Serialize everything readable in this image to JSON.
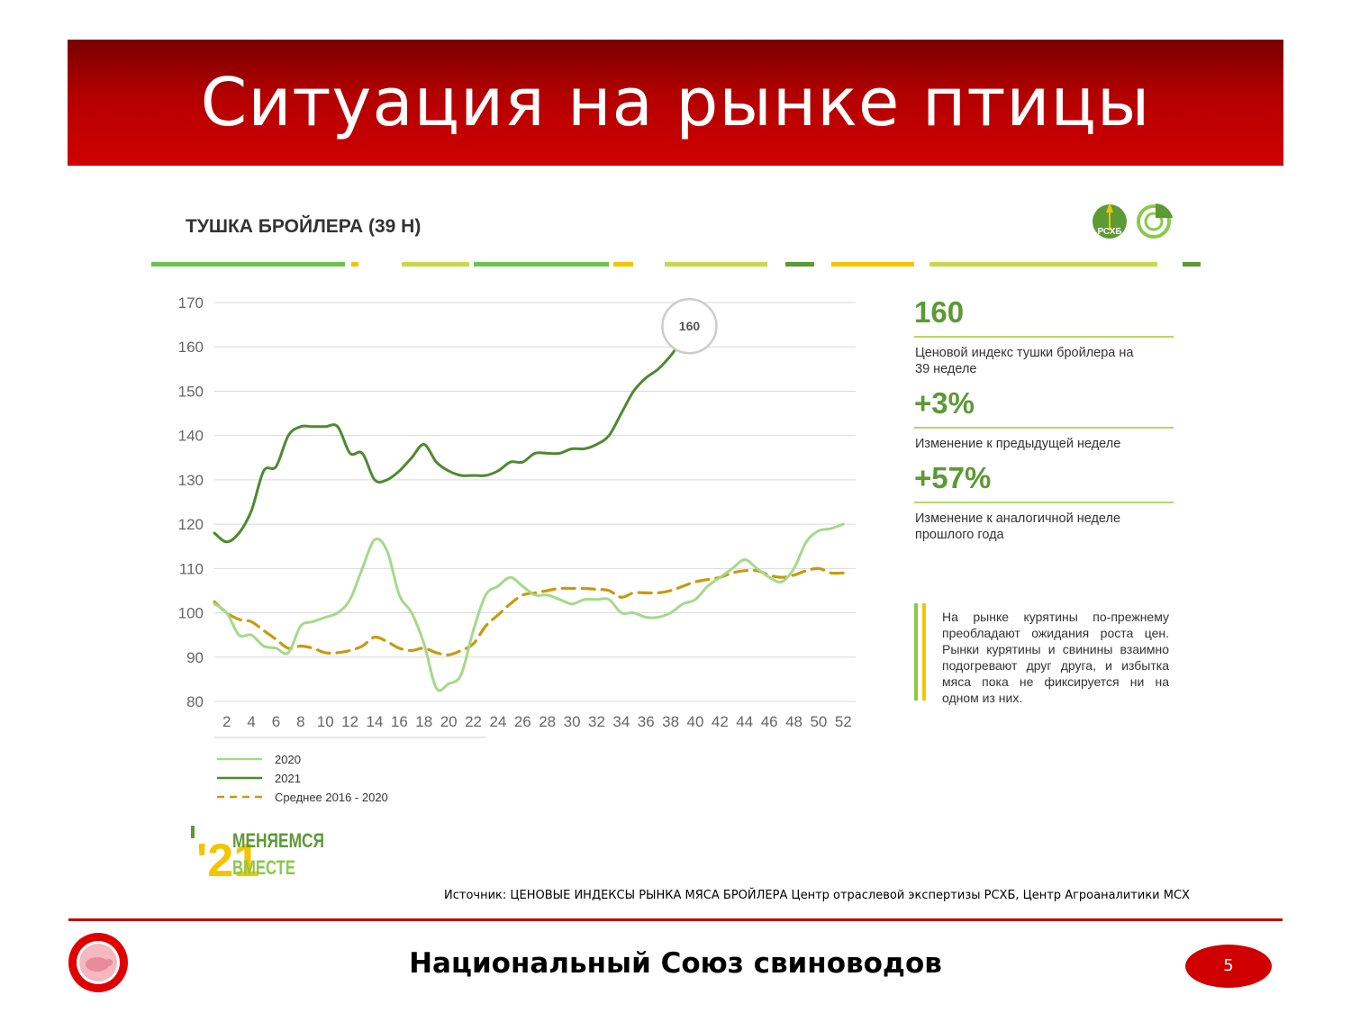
{
  "slide": {
    "title": "Ситуация на рынке птицы",
    "footer": "Национальный Союз свиноводов",
    "page_number": "5",
    "source": "Источник: ЦЕНОВЫЕ ИНДЕКСЫ РЫНКА МЯСА БРОЙЛЕРА  Центр отраслевой экспертизы РСХБ, Центр Агроаналитики МСХ"
  },
  "colors": {
    "banner": "#c00000",
    "accent_green": "#5b9a35",
    "light_green": "#a5d98a",
    "dark_green": "#4e8a2e",
    "mustard": "#c89a10",
    "yellow": "#f5c400"
  },
  "logos": {
    "rshb": "РСХБ",
    "promo_year": "'21",
    "promo_line1": "МЕНЯЕМСЯ",
    "promo_line2": "ВМЕСТЕ"
  },
  "kpis": [
    {
      "value": "160",
      "label": "Ценовой индекс тушки бройлера на 39 неделе"
    },
    {
      "value": "+3%",
      "label": "Изменение к предыдущей неделе"
    },
    {
      "value": "+57%",
      "label": "Изменение к аналогичной неделе прошлого года"
    }
  ],
  "note": "На рынке курятины по-прежнему преобладают ожидания роста цен. Рынки курятины и свинины взаимно подогревают друг друга, и избытка мяса пока не фиксируется ни на одном из них.",
  "chart_data": {
    "type": "line",
    "title": "ТУШКА БРОЙЛЕРА (39 Н)",
    "xlabel": "",
    "ylabel": "",
    "grid": true,
    "legend_position": "bottom-left",
    "xlim": [
      1,
      53
    ],
    "ylim": [
      80,
      170
    ],
    "x_ticks": [
      2,
      4,
      6,
      8,
      10,
      12,
      14,
      16,
      18,
      20,
      22,
      24,
      26,
      28,
      30,
      32,
      34,
      36,
      38,
      40,
      42,
      44,
      46,
      48,
      50,
      52
    ],
    "y_ticks": [
      80,
      90,
      100,
      110,
      120,
      130,
      140,
      150,
      160,
      170
    ],
    "annotation": {
      "x": 38.5,
      "y": 160,
      "text": "160"
    },
    "series": [
      {
        "name": "2020",
        "color": "#a5d98a",
        "dash": false,
        "x": [
          1,
          2,
          3,
          4,
          5,
          6,
          7,
          8,
          9,
          10,
          11,
          12,
          13,
          14,
          15,
          16,
          17,
          18,
          19,
          20,
          21,
          22,
          23,
          24,
          25,
          26,
          27,
          28,
          29,
          30,
          31,
          32,
          33,
          34,
          35,
          36,
          37,
          38,
          39,
          40,
          41,
          42,
          43,
          44,
          45,
          46,
          47,
          48,
          49,
          50,
          51,
          52
        ],
        "y": [
          102,
          100,
          95,
          95,
          92.5,
          92,
          91,
          97,
          98,
          99,
          100,
          103,
          110,
          116.5,
          114,
          104,
          100,
          93,
          83,
          84,
          86,
          96,
          104,
          106,
          108,
          106,
          104,
          104,
          103,
          102,
          103,
          103,
          103,
          100,
          100,
          99,
          99,
          100,
          102,
          103,
          106,
          108,
          110,
          112,
          110,
          108,
          107,
          110,
          116,
          118.5,
          119,
          120
        ]
      },
      {
        "name": "2021",
        "color": "#4e8a2e",
        "dash": false,
        "x": [
          1,
          2,
          3,
          4,
          5,
          6,
          7,
          8,
          9,
          10,
          11,
          12,
          13,
          14,
          15,
          16,
          17,
          18,
          19,
          20,
          21,
          22,
          23,
          24,
          25,
          26,
          27,
          28,
          29,
          30,
          31,
          32,
          33,
          34,
          35,
          36,
          37,
          38,
          38.5
        ],
        "y": [
          118,
          116,
          118,
          123,
          132,
          133,
          140,
          142,
          142,
          142,
          142,
          136,
          136,
          130,
          130,
          132,
          135,
          138,
          134,
          132,
          131,
          131,
          131,
          132,
          134,
          134,
          136,
          136,
          136,
          137,
          137,
          138,
          140,
          145,
          150,
          153,
          155,
          158,
          160
        ]
      },
      {
        "name": "Среднее 2016 - 2020",
        "color": "#c89a10",
        "dash": true,
        "x": [
          1,
          2,
          3,
          4,
          5,
          6,
          7,
          8,
          9,
          10,
          11,
          12,
          13,
          14,
          15,
          16,
          17,
          18,
          19,
          20,
          21,
          22,
          23,
          24,
          25,
          26,
          27,
          28,
          29,
          30,
          31,
          32,
          33,
          34,
          35,
          36,
          37,
          38,
          39,
          40,
          41,
          42,
          43,
          44,
          45,
          46,
          47,
          48,
          49,
          50,
          51,
          52
        ],
        "y": [
          102.5,
          100,
          98.5,
          98,
          96,
          94,
          92,
          92.5,
          92,
          91,
          91,
          91.5,
          92.5,
          94.5,
          93.5,
          92,
          91.5,
          92,
          91,
          90.5,
          91.5,
          93,
          97,
          99.5,
          102,
          104,
          104.5,
          105,
          105.5,
          105.5,
          105.5,
          105.3,
          105,
          103.5,
          104.5,
          104.5,
          104.5,
          105,
          106,
          107,
          107.5,
          108,
          109,
          109.5,
          109.5,
          108.5,
          108,
          108.5,
          109.5,
          110,
          109,
          109
        ]
      }
    ]
  }
}
